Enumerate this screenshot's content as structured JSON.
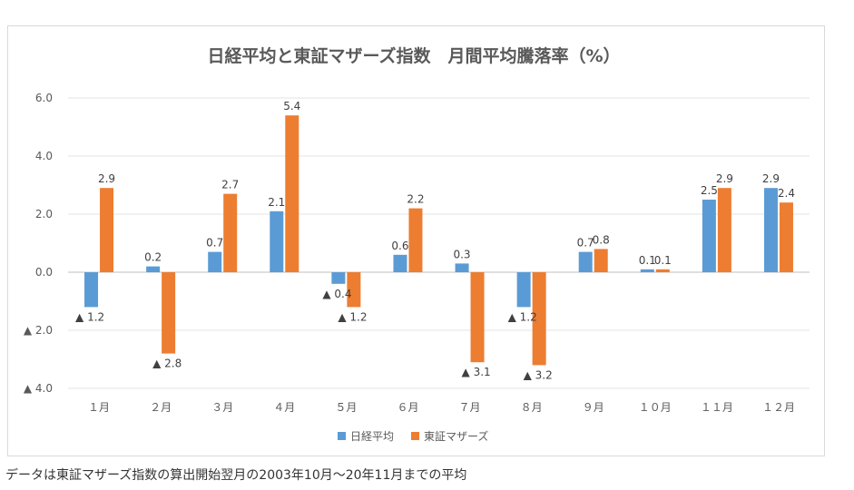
{
  "chart_data": {
    "type": "bar",
    "title": "日経平均と東証マザーズ指数　月間平均騰落率（%）",
    "categories": [
      "１月",
      "２月",
      "３月",
      "４月",
      "５月",
      "６月",
      "７月",
      "８月",
      "９月",
      "１０月",
      "１１月",
      "１２月"
    ],
    "series": [
      {
        "name": "日経平均",
        "color": "#5b9bd5",
        "values": [
          -1.2,
          0.2,
          0.7,
          2.1,
          -0.4,
          0.6,
          0.3,
          -1.2,
          0.7,
          0.1,
          2.5,
          2.9
        ],
        "labels": [
          "▲ 1.2",
          "0.2",
          "0.7",
          "2.1",
          "▲ 0.4",
          "0.6",
          "0.3",
          "▲ 1.2",
          "0.7",
          "0.1",
          "2.5",
          "2.9"
        ]
      },
      {
        "name": "東証マザーズ",
        "color": "#ed7d31",
        "values": [
          2.9,
          -2.8,
          2.7,
          5.4,
          -1.2,
          2.2,
          -3.1,
          -3.2,
          0.8,
          0.1,
          2.9,
          2.4
        ],
        "labels": [
          "2.9",
          "▲ 2.8",
          "2.7",
          "5.4",
          "▲ 1.2",
          "2.2",
          "▲ 3.1",
          "▲ 3.2",
          "0.8",
          "0.1",
          "2.9",
          "2.4"
        ]
      }
    ],
    "ylim": [
      -4,
      6
    ],
    "yticks": [
      6,
      4,
      2,
      0,
      -2,
      -4
    ],
    "ytick_labels": [
      "6.0",
      "4.0",
      "2.0",
      "0.0",
      "▲ 2.0",
      "▲ 4.0"
    ],
    "grid": true,
    "legend_position": "bottom"
  },
  "caption": "データは東証マザーズ指数の算出開始翌月の2003年10月〜20年11月までの平均"
}
